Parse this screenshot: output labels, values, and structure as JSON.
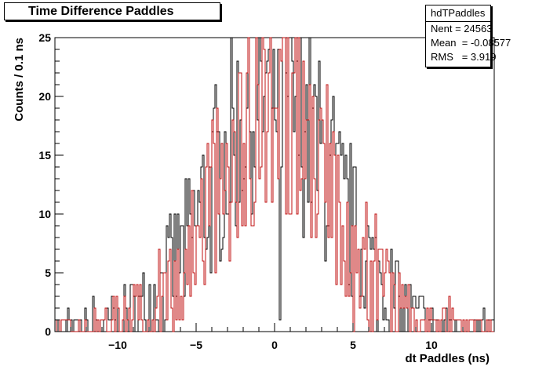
{
  "title": "Time Difference Paddles",
  "stats": {
    "name": "hdTPaddles",
    "entries_label": "Nent = 24563",
    "mean_label": "Mean  = -0.08577",
    "rms_label": "RMS   = 3.919"
  },
  "colors": {
    "series_black": "#000000",
    "series_red": "#c01010",
    "frame": "#000000"
  },
  "chart_data": {
    "type": "line",
    "title": "Time Difference Paddles",
    "xlabel": "dt Paddles (ns)",
    "ylabel": "Counts / 0.1 ns",
    "xlim": [
      -14,
      14
    ],
    "ylim": [
      0,
      25
    ],
    "x_ticks": [
      -10,
      -5,
      0,
      5,
      10
    ],
    "x_tick_labels": [
      "−10",
      "−5",
      "0",
      "5",
      "10"
    ],
    "y_ticks": [
      0,
      5,
      10,
      15,
      20,
      25
    ],
    "y_tick_labels": [
      "0",
      "5",
      "10",
      "15",
      "20",
      "25"
    ],
    "grid": false,
    "legend": "top-right stats box",
    "bin_width": 0.1,
    "series": [
      {
        "color": "#000000",
        "mu": -0.1,
        "sigma": 3.9,
        "peak": 20,
        "seed": 7,
        "values": [
          {
            "x": -0.1,
            "y": 24
          },
          {
            "x": 1.4,
            "y": 23
          },
          {
            "x": -0.6,
            "y": 22
          },
          {
            "x": 0.3,
            "y": 1
          }
        ]
      },
      {
        "color": "#c01010",
        "mu": 0.0,
        "sigma": 3.8,
        "peak": 19,
        "seed": 13,
        "values": [
          {
            "x": 0.4,
            "y": 23
          },
          {
            "x": -0.4,
            "y": 22
          },
          {
            "x": 5.0,
            "y": 0
          }
        ]
      }
    ]
  }
}
